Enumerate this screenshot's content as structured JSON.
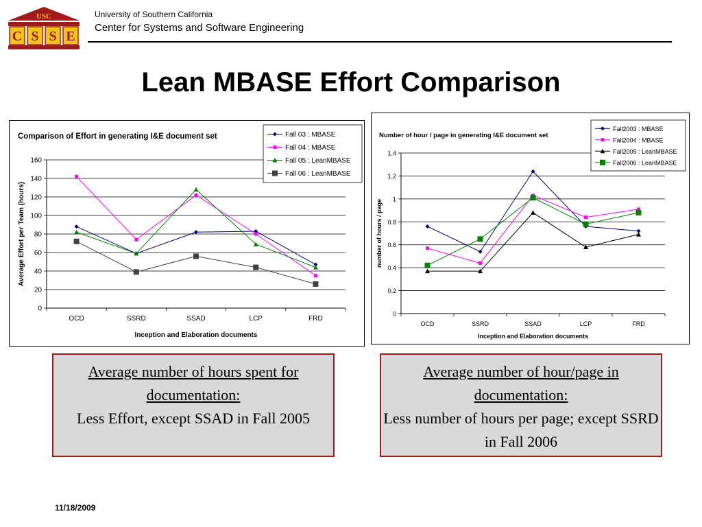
{
  "header": {
    "institution": "University of Southern California",
    "center": "Center for Systems and Software Engineering",
    "logo_text": "USC",
    "logo_letters": [
      "C",
      "S",
      "S",
      "E"
    ],
    "logo_color": "#9e1b1b",
    "logo_gold": "#f0c419"
  },
  "slide_title": "Lean MBASE Effort Comparison",
  "chart_data": [
    {
      "type": "line",
      "title": "Comparison of Effort in generating I&E document set",
      "xlabel": "Inception and Elaboration documents",
      "ylabel": "Average Effort per Team (hours)",
      "categories": [
        "OCD",
        "SSRD",
        "SSAD",
        "LCP",
        "FRD"
      ],
      "ylim": [
        0,
        160
      ],
      "yticks": [
        0,
        20,
        40,
        60,
        80,
        100,
        120,
        140,
        160
      ],
      "grid": true,
      "legend_position": "top-right",
      "series": [
        {
          "name": "Fall 03 : MBASE",
          "color": "#00007f",
          "marker": "diamond",
          "values": [
            88,
            59,
            82,
            83,
            47
          ]
        },
        {
          "name": "Fall 04 : MBASE",
          "color": "#ff00ff",
          "marker": "square",
          "values": [
            142,
            74,
            122,
            80,
            35
          ]
        },
        {
          "name": "Fall 05 : LeanMBASE",
          "color": "#008000",
          "marker": "triangle",
          "values": [
            82,
            59,
            128,
            69,
            44
          ]
        },
        {
          "name": "Fall 06 : LeanMBASE",
          "color": "#404040",
          "marker": "bigsquare",
          "values": [
            72,
            39,
            56,
            44,
            26
          ]
        }
      ]
    },
    {
      "type": "line",
      "title": "Number of hour / page in generating I&E document set",
      "xlabel": "Inception and Elaboration documents",
      "ylabel": "number of hours / page",
      "categories": [
        "OCD",
        "SSRD",
        "SSAD",
        "LCP",
        "FRD"
      ],
      "ylim": [
        0,
        1.4
      ],
      "yticks": [
        0,
        0.2,
        0.4,
        0.6,
        0.8,
        1,
        1.2,
        1.4
      ],
      "grid": true,
      "legend_position": "top-right",
      "series": [
        {
          "name": "Fall2003 : MBASE",
          "color": "#00007f",
          "marker": "diamond",
          "values": [
            0.76,
            0.54,
            1.24,
            0.76,
            0.72
          ]
        },
        {
          "name": "Fall2004 : MBASE",
          "color": "#ff00ff",
          "marker": "square",
          "values": [
            0.57,
            0.44,
            1.03,
            0.84,
            0.91
          ]
        },
        {
          "name": "Fall2005 : LeanMBASE",
          "color": "#000000",
          "marker": "triangle",
          "values": [
            0.37,
            0.37,
            0.88,
            0.58,
            0.69
          ]
        },
        {
          "name": "Fall2006 : LeanMBASE",
          "color": "#008000",
          "marker": "bigsquare",
          "values": [
            0.42,
            0.65,
            1.01,
            0.78,
            0.88
          ]
        }
      ]
    }
  ],
  "notes": [
    {
      "heading": "Average number of hours spent for documentation:",
      "text": "Less Effort, except SSAD in Fall 2005"
    },
    {
      "heading": "Average number of hour/page in documentation:",
      "text": "Less number of hours per page; except SSRD in Fall 2006"
    }
  ],
  "footer": {
    "date": "11/18/2009"
  }
}
